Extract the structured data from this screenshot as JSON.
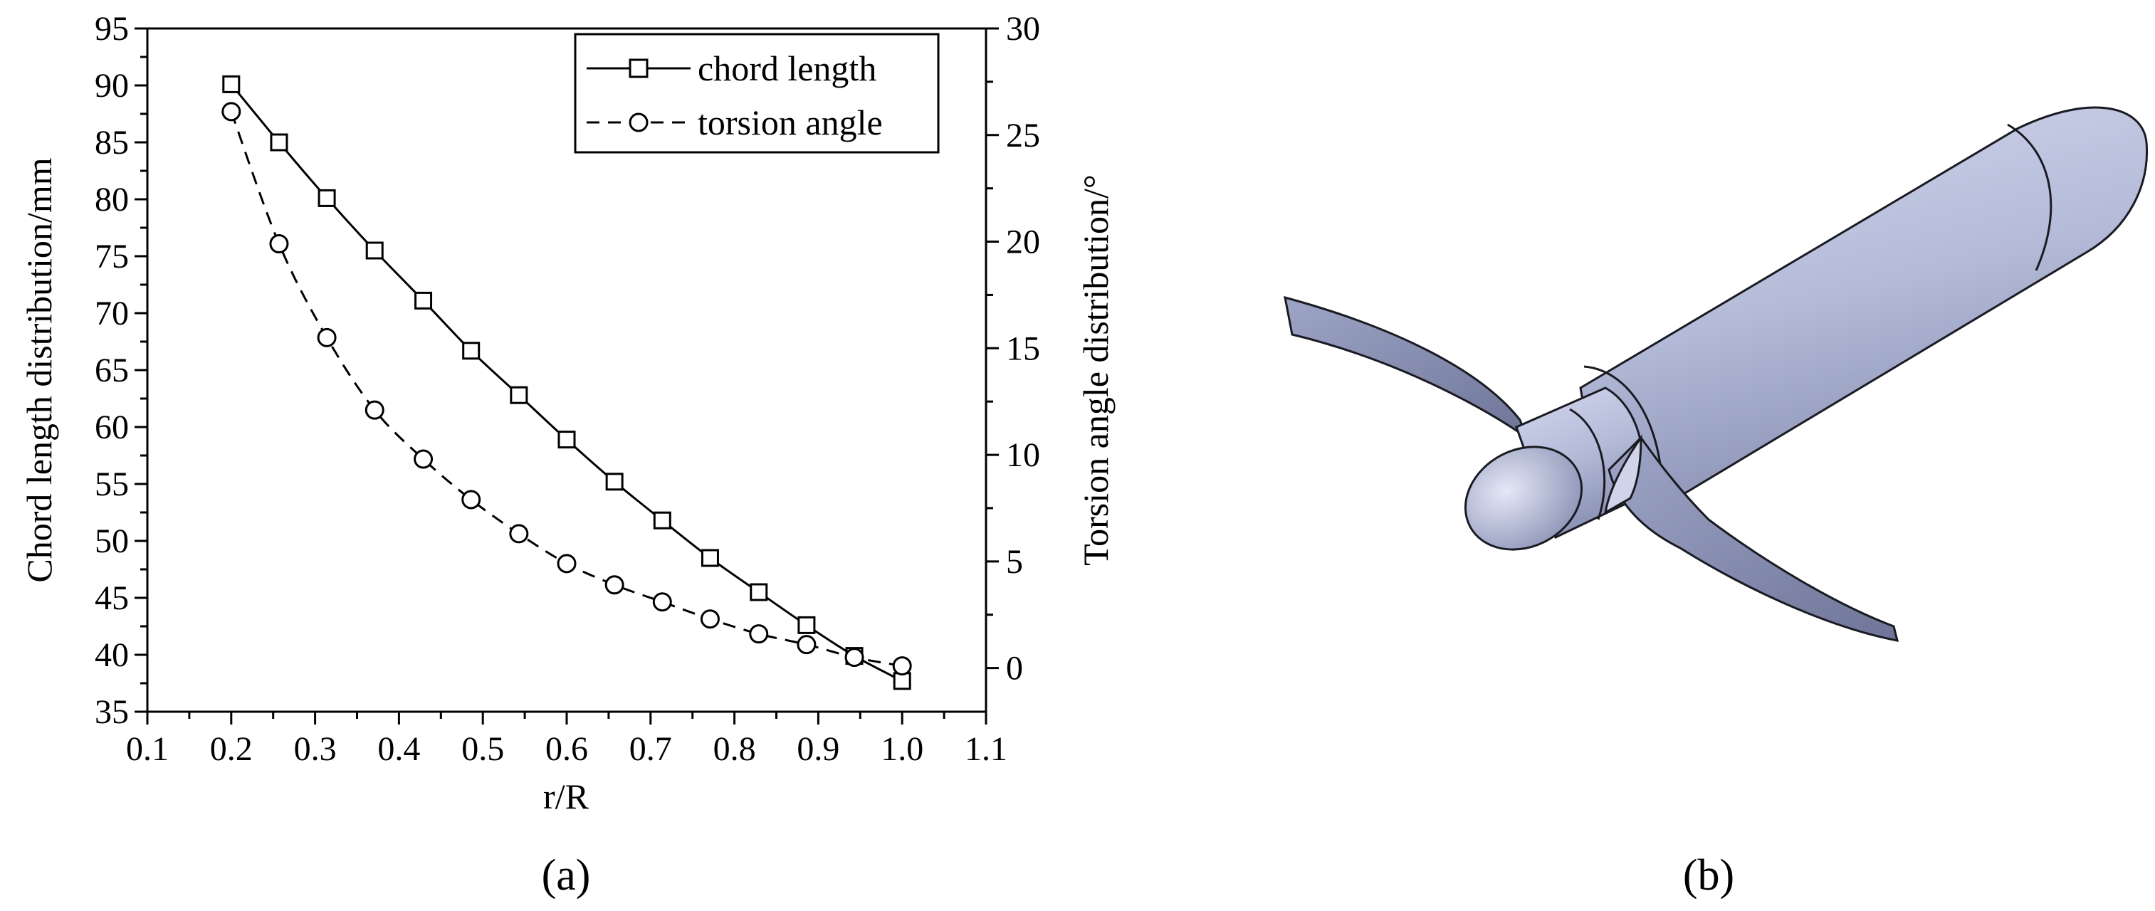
{
  "panels": {
    "a_label": "(a)",
    "b_label": "(b)"
  },
  "colors": {
    "axis": "#000000",
    "series": "#000000",
    "model_body": "#b8bed9",
    "model_shadow": "#7a81a6",
    "model_outline": "#1a1a22"
  },
  "chart_data": {
    "type": "line",
    "xlabel": "r/R",
    "ylabel_left": "Chord length distribution/mm",
    "ylabel_right": "Torsion angle distribution/°",
    "xlim": [
      0.1,
      1.1
    ],
    "ylim_left": [
      35,
      95
    ],
    "ylim_right": [
      -2.05,
      30
    ],
    "x_ticks": [
      "0.1",
      "0.2",
      "0.3",
      "0.4",
      "0.5",
      "0.6",
      "0.7",
      "0.8",
      "0.9",
      "1.0",
      "1.1"
    ],
    "y_left_ticks": [
      "35",
      "40",
      "45",
      "50",
      "55",
      "60",
      "65",
      "70",
      "75",
      "80",
      "85",
      "90",
      "95"
    ],
    "y_right_ticks": [
      "0",
      "5",
      "10",
      "15",
      "20",
      "25",
      "30"
    ],
    "grid": false,
    "legend_position": "top-right",
    "series": [
      {
        "name": "chord length",
        "axis": "left",
        "marker": "square",
        "line": "solid",
        "x": [
          0.2,
          0.257,
          0.314,
          0.371,
          0.429,
          0.486,
          0.543,
          0.6,
          0.657,
          0.714,
          0.771,
          0.829,
          0.886,
          0.943,
          1.0
        ],
        "values": [
          90.1,
          85.0,
          80.1,
          75.5,
          71.1,
          66.7,
          62.8,
          58.9,
          55.2,
          51.8,
          48.5,
          45.5,
          42.6,
          39.9,
          37.7
        ]
      },
      {
        "name": "torsion angle",
        "axis": "right",
        "marker": "circle",
        "line": "dashed",
        "x": [
          0.2,
          0.257,
          0.314,
          0.371,
          0.429,
          0.486,
          0.543,
          0.6,
          0.657,
          0.714,
          0.771,
          0.829,
          0.886,
          0.943,
          1.0
        ],
        "values": [
          26.1,
          19.9,
          15.5,
          12.1,
          9.8,
          7.9,
          6.3,
          4.9,
          3.9,
          3.1,
          2.3,
          1.6,
          1.1,
          0.5,
          0.1
        ]
      }
    ]
  }
}
